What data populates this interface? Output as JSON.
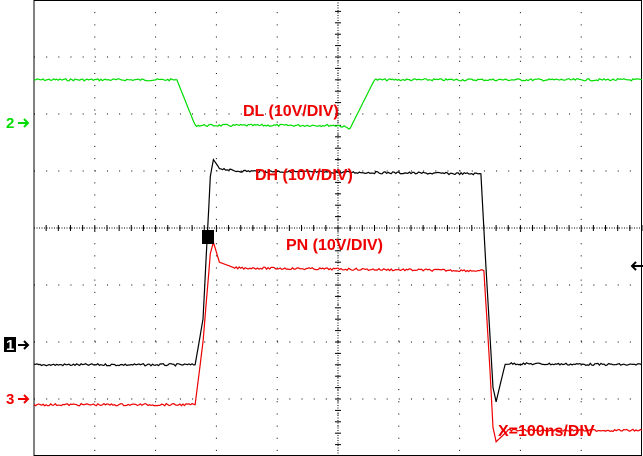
{
  "chart_data": {
    "type": "line",
    "title": "",
    "xlabel": "",
    "ylabel": "",
    "divisions": {
      "x": 10,
      "y": 8
    },
    "x_range_div": [
      0,
      10
    ],
    "y_range_div": [
      0,
      8
    ],
    "grid": "dotted",
    "timebase": "X=100ns/DIV",
    "series": [
      {
        "name": "DL (10V/DIV)",
        "channel_marker": "2",
        "color": "#00dd00",
        "x": [
          0,
          2.35,
          2.65,
          5.0,
          5.2,
          5.6,
          10
        ],
        "y": [
          6.6,
          6.6,
          5.8,
          5.8,
          5.75,
          6.6,
          6.6
        ]
      },
      {
        "name": "DH (10V/DIV)",
        "channel_marker": "1",
        "color": "#000000",
        "x": [
          0,
          2.65,
          2.78,
          2.9,
          2.95,
          3.05,
          3.3,
          7.35,
          7.45,
          7.55,
          7.6,
          7.75,
          10
        ],
        "y": [
          1.6,
          1.6,
          2.4,
          4.9,
          5.2,
          5.05,
          5.0,
          4.95,
          3.0,
          1.2,
          0.95,
          1.62,
          1.6
        ]
      },
      {
        "name": "PN (10V/DIV)",
        "channel_marker": "3",
        "color": "#ee0000",
        "x": [
          0,
          2.65,
          2.78,
          2.9,
          2.95,
          3.05,
          3.3,
          7.4,
          7.5,
          7.55,
          7.6,
          7.8,
          10
        ],
        "y": [
          0.9,
          0.9,
          2.0,
          3.55,
          3.75,
          3.4,
          3.3,
          3.25,
          1.5,
          0.5,
          0.25,
          0.45,
          0.45
        ]
      }
    ]
  },
  "ch1_marker": "1",
  "ch2_marker": "2",
  "ch3_marker": "3",
  "label_dl": "DL (10V/DIV)",
  "label_dh": "DH (10V/DIV)",
  "label_pn": "PN (10V/DIV)",
  "label_timebase": "X=100ns/DIV",
  "colors": {
    "ch1": "#000000",
    "ch2": "#00dd00",
    "ch3": "#ee0000",
    "label": "#ee0000",
    "grid": "#000000"
  }
}
